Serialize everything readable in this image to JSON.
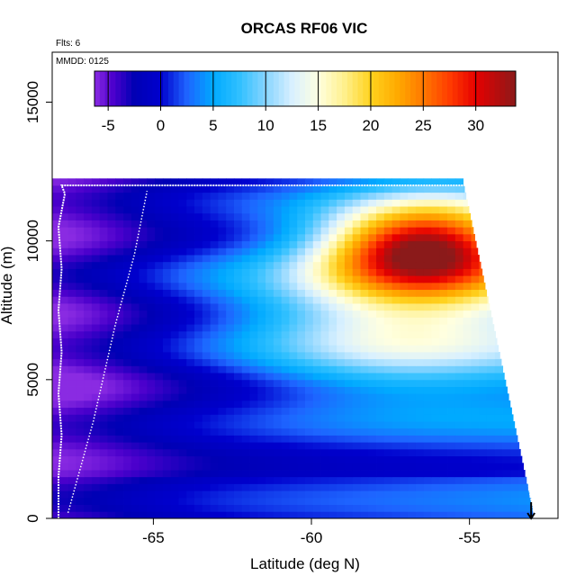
{
  "chart_data": {
    "type": "heatmap",
    "title": "ORCAS RF06 VIC",
    "annotations": [
      "Flts: 6",
      "MMDD: 0125"
    ],
    "xlabel": "Latitude (deg N)",
    "ylabel": "Altitude (m)",
    "xlim": [
      -68.2,
      -52.2
    ],
    "ylim": [
      0,
      16800
    ],
    "x_ticks": [
      {
        "value": -65,
        "label": "-65"
      },
      {
        "value": -60,
        "label": "-60"
      },
      {
        "value": -55,
        "label": "-55"
      }
    ],
    "y_ticks": [
      {
        "value": 0,
        "label": "0"
      },
      {
        "value": 5000,
        "label": "5000"
      },
      {
        "value": 10000,
        "label": "10000"
      },
      {
        "value": 15000,
        "label": "15000"
      }
    ],
    "colorbar": {
      "min": -6.3,
      "max": 33.8,
      "ticks": [
        {
          "value": -5,
          "label": "-5"
        },
        {
          "value": 0,
          "label": "0"
        },
        {
          "value": 5,
          "label": "5"
        },
        {
          "value": 10,
          "label": "10"
        },
        {
          "value": 15,
          "label": "15"
        },
        {
          "value": 20,
          "label": "20"
        },
        {
          "value": 25,
          "label": "25"
        },
        {
          "value": 30,
          "label": "30"
        }
      ],
      "color_stops": [
        {
          "value": -6.3,
          "color": "#8a2be2"
        },
        {
          "value": -4.5,
          "color": "#4b00cc"
        },
        {
          "value": -2.5,
          "color": "#0000b4"
        },
        {
          "value": 0.0,
          "color": "#0000cd"
        },
        {
          "value": 2.5,
          "color": "#1e64ff"
        },
        {
          "value": 5.0,
          "color": "#00aaff"
        },
        {
          "value": 7.5,
          "color": "#30c0ff"
        },
        {
          "value": 10.0,
          "color": "#87d4ff"
        },
        {
          "value": 12.5,
          "color": "#d8f0ff"
        },
        {
          "value": 15.0,
          "color": "#ffffe0"
        },
        {
          "value": 17.5,
          "color": "#fff08c"
        },
        {
          "value": 20.0,
          "color": "#ffd21e"
        },
        {
          "value": 22.5,
          "color": "#ffaa00"
        },
        {
          "value": 25.0,
          "color": "#ff7800"
        },
        {
          "value": 27.5,
          "color": "#ff3c00"
        },
        {
          "value": 30.0,
          "color": "#e60000"
        },
        {
          "value": 33.8,
          "color": "#8b1a1a"
        }
      ]
    },
    "field": {
      "lat_edges": [
        -68.2,
        -53.2
      ],
      "lat_top_wedge": [
        -55.2,
        12100
      ],
      "lat_bottom_wedge": [
        -53.0,
        300
      ],
      "alt_max": 12200,
      "dlat": 0.25,
      "dalt": 250,
      "jet_core": {
        "lat": -56.5,
        "alt": 9800,
        "value": 31
      },
      "base_value": -1
    },
    "flight_track": {
      "color": "#ffffff",
      "points": [
        [
          -68.0,
          0
        ],
        [
          -68.0,
          1500
        ],
        [
          -67.9,
          3000
        ],
        [
          -68.0,
          4500
        ],
        [
          -67.9,
          6000
        ],
        [
          -68.0,
          7500
        ],
        [
          -67.9,
          9000
        ],
        [
          -68.0,
          10500
        ],
        [
          -67.8,
          11700
        ],
        [
          -67.9,
          12000
        ],
        [
          -65.2,
          12000
        ],
        [
          -60.0,
          12000
        ],
        [
          -55.0,
          12000
        ],
        [
          -54.6,
          11000
        ],
        [
          -54.1,
          9000
        ],
        [
          -53.7,
          7000
        ],
        [
          -53.5,
          5000
        ],
        [
          -53.3,
          3000
        ],
        [
          -53.1,
          1000
        ],
        [
          -53.0,
          400
        ]
      ],
      "climb": [
        [
          -67.7,
          200
        ],
        [
          -66.9,
          3500
        ],
        [
          -66.2,
          7000
        ],
        [
          -65.6,
          9500
        ],
        [
          -65.2,
          11800
        ]
      ],
      "end_marker": [
        -53.05,
        0
      ]
    }
  }
}
